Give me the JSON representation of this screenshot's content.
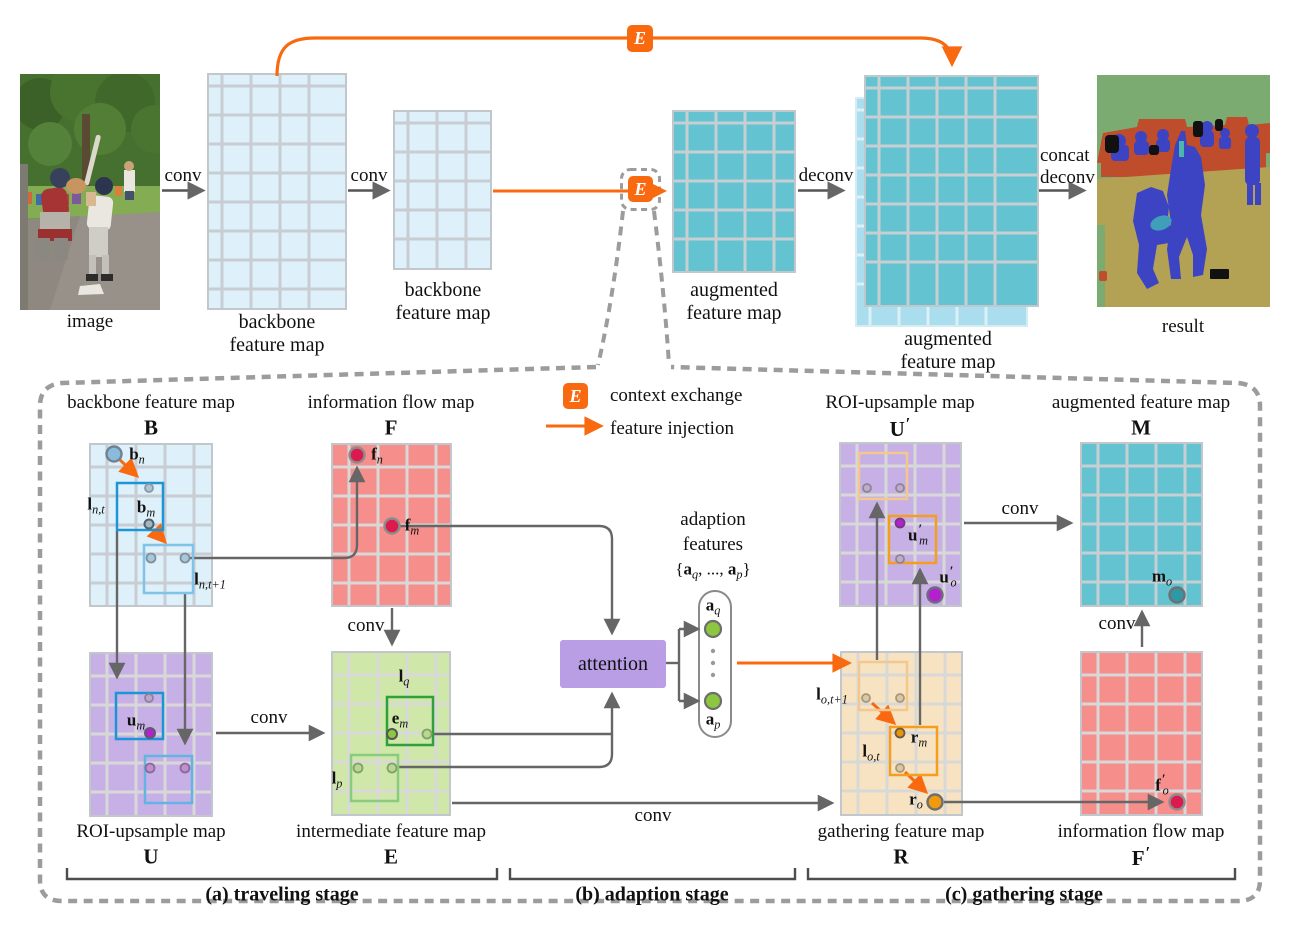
{
  "top": {
    "image_label": "image",
    "conv1": "conv",
    "conv2": "conv",
    "exchange_symbol_top": "E",
    "exchange_symbol_mid": "E",
    "map1_line1": "backbone",
    "map1_line2": "feature map",
    "map2_line1": "backbone",
    "map2_line2": "feature map",
    "aug1_line1": "augmented",
    "aug1_line2": "feature map",
    "aug2_line1": "augmented",
    "aug2_line2": "feature map",
    "deconv": "deconv",
    "concat": "concat",
    "concat_deconv": "deconv",
    "result_label": "result"
  },
  "legend": {
    "exchange_symbol": "E",
    "context_exchange": "context exchange",
    "feature_injection": "feature injection"
  },
  "panel": {
    "maps": {
      "b": {
        "title": "backbone feature map",
        "letter": "B"
      },
      "f": {
        "title": "information flow map",
        "letter": "F"
      },
      "u2": {
        "title": "ROI-upsample map",
        "letter": "U'"
      },
      "m": {
        "title": "augmented feature map",
        "letter": "M"
      },
      "u": {
        "title": "ROI-upsample map",
        "letter": "U"
      },
      "e": {
        "title": "intermediate feature map",
        "letter": "E"
      },
      "r": {
        "title": "gathering feature map",
        "letter": "R"
      },
      "f2": {
        "title": "information flow map",
        "letter": "F'"
      }
    },
    "attention_label": "attention",
    "adaption_line1": "adaption",
    "adaption_line2": "features",
    "adaption_line3": "{a_q, ..., a_p}",
    "conv_f_e": "conv",
    "conv_u_e": "conv",
    "conv_e_r": "conv",
    "conv_u2_m": "conv",
    "conv_f2_m": "conv",
    "points": {
      "b_n": "b_n",
      "l_nt": "l_{n,t}",
      "b_m": "b_m",
      "l_nt1": "l_{n,t+1}",
      "f_n": "f_n",
      "f_m": "f_m",
      "u_m": "u_m",
      "l_q": "l_q",
      "e_m": "e_m",
      "l_p": "l_p",
      "a_q": "a_q",
      "a_p": "a_p",
      "l_ot1": "l_{o,t+1}",
      "r_m": "r_m",
      "l_ot": "l_{o,t}",
      "r_o": "r_o",
      "u2_m": "u'_m",
      "u2_o": "u'_o",
      "m_o": "m_o",
      "f2_o": "f'_o"
    },
    "stage_a": "(a) traveling stage",
    "stage_b": "(b) adaption stage",
    "stage_c": "(c) gathering stage"
  },
  "colors": {
    "accent_orange": "#f9690f",
    "backbone_blue": "#def0f9",
    "augmented_teal": "#63c3d1",
    "augmented_backing": "#aadded",
    "flow_red": "#f68e8b",
    "roi_purple": "#c7b0e6",
    "intermediate_green": "#cfe7a8",
    "gathering_tan": "#f7e3c1",
    "attention_purple": "#b99ee6",
    "crimson_dot": "#dd1a4d",
    "green_dot": "#8dc63f",
    "magenta_dot": "#b51fd0",
    "teal_dot": "#2d98a6",
    "orange_dot": "#f19a0d",
    "wire_gray": "#666666",
    "dash_gray": "#9c9c9c"
  }
}
